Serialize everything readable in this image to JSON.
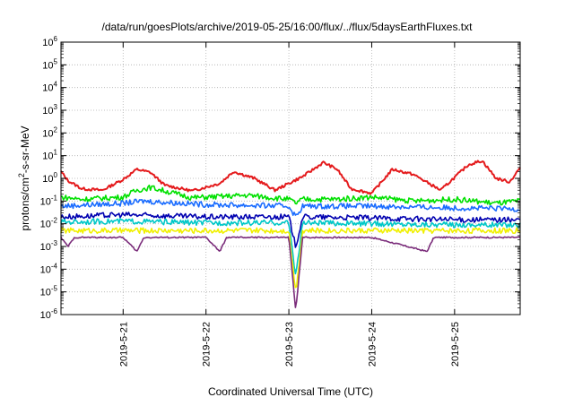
{
  "chart_data": {
    "type": "line",
    "title": "/data/run/goesPlots/archive/2019-05-25/16:00/flux/../flux/5daysEarthFluxes.txt",
    "xlabel": "Coordinated Universal Time (UTC)",
    "ylabel": {
      "prefix": "protons/cm",
      "sup": "2",
      "suffix": "-s-sr-MeV"
    },
    "x_range": [
      "2019-05-20 06:00",
      "2019-05-25 19:00"
    ],
    "x_ticks": [
      "2019-5-21",
      "2019-5-22",
      "2019-5-23",
      "2019-5-24",
      "2019-5-25"
    ],
    "y_scale": "log",
    "ylim": [
      1e-06,
      1000000.0
    ],
    "y_ticks": [
      {
        "base": "10",
        "exp": "-6"
      },
      {
        "base": "10",
        "exp": "-5"
      },
      {
        "base": "10",
        "exp": "-4"
      },
      {
        "base": "10",
        "exp": "-3"
      },
      {
        "base": "10",
        "exp": "-2"
      },
      {
        "base": "10",
        "exp": "-1"
      },
      {
        "base": "10",
        "exp": "0"
      },
      {
        "base": "10",
        "exp": "1"
      },
      {
        "base": "10",
        "exp": "2"
      },
      {
        "base": "10",
        "exp": "3"
      },
      {
        "base": "10",
        "exp": "4"
      },
      {
        "base": "10",
        "exp": "5"
      },
      {
        "base": "10",
        "exp": "6"
      }
    ],
    "grid": true,
    "series": [
      {
        "color": "#e41a1c",
        "points": [
          [
            "2019-05-20 06:00",
            2.0
          ],
          [
            "2019-05-20 08:00",
            0.8
          ],
          [
            "2019-05-20 12:00",
            0.35
          ],
          [
            "2019-05-20 18:00",
            0.3
          ],
          [
            "2019-05-21 00:00",
            0.9
          ],
          [
            "2019-05-21 04:00",
            2.5
          ],
          [
            "2019-05-21 08:00",
            1.8
          ],
          [
            "2019-05-21 12:00",
            0.5
          ],
          [
            "2019-05-21 20:00",
            0.28
          ],
          [
            "2019-05-22 04:00",
            0.6
          ],
          [
            "2019-05-22 08:00",
            2.0
          ],
          [
            "2019-05-22 14:00",
            1.0
          ],
          [
            "2019-05-22 20:00",
            0.3
          ],
          [
            "2019-05-23 04:00",
            1.2
          ],
          [
            "2019-05-23 10:00",
            5.0
          ],
          [
            "2019-05-23 14:00",
            2.5
          ],
          [
            "2019-05-23 18:00",
            0.35
          ],
          [
            "2019-05-24 00:00",
            0.22
          ],
          [
            "2019-05-24 06:00",
            2.5
          ],
          [
            "2019-05-24 12:00",
            1.5
          ],
          [
            "2019-05-24 20:00",
            0.3
          ],
          [
            "2019-05-25 04:00",
            4.0
          ],
          [
            "2019-05-25 08:00",
            6.0
          ],
          [
            "2019-05-25 12:00",
            1.0
          ],
          [
            "2019-05-25 16:00",
            0.7
          ],
          [
            "2019-05-25 19:00",
            3.0
          ]
        ]
      },
      {
        "color": "#00e000",
        "points": [
          [
            "2019-05-20 06:00",
            0.15
          ],
          [
            "2019-05-20 12:00",
            0.12
          ],
          [
            "2019-05-21 00:00",
            0.15
          ],
          [
            "2019-05-21 04:00",
            0.3
          ],
          [
            "2019-05-21 08:00",
            0.4
          ],
          [
            "2019-05-21 20:00",
            0.14
          ],
          [
            "2019-05-22 12:00",
            0.18
          ],
          [
            "2019-05-23 00:00",
            0.12
          ],
          [
            "2019-05-23 02:00",
            0.08
          ],
          [
            "2019-05-23 04:00",
            0.12
          ],
          [
            "2019-05-23 14:00",
            0.12
          ],
          [
            "2019-05-24 00:00",
            0.15
          ],
          [
            "2019-05-24 12:00",
            0.1
          ],
          [
            "2019-05-25 00:00",
            0.12
          ],
          [
            "2019-05-25 12:00",
            0.08
          ],
          [
            "2019-05-25 19:00",
            0.1
          ]
        ]
      },
      {
        "color": "#1a6cff",
        "points": [
          [
            "2019-05-20 06:00",
            0.06
          ],
          [
            "2019-05-21 00:00",
            0.08
          ],
          [
            "2019-05-21 06:00",
            0.1
          ],
          [
            "2019-05-22 00:00",
            0.07
          ],
          [
            "2019-05-23 00:00",
            0.06
          ],
          [
            "2019-05-23 02:00",
            0.02
          ],
          [
            "2019-05-23 04:00",
            0.06
          ],
          [
            "2019-05-24 00:00",
            0.06
          ],
          [
            "2019-05-25 00:00",
            0.05
          ],
          [
            "2019-05-25 19:00",
            0.045
          ]
        ]
      },
      {
        "color": "#0000b0",
        "points": [
          [
            "2019-05-20 06:00",
            0.02
          ],
          [
            "2019-05-21 00:00",
            0.025
          ],
          [
            "2019-05-22 00:00",
            0.02
          ],
          [
            "2019-05-23 00:00",
            0.02
          ],
          [
            "2019-05-23 02:00",
            0.001
          ],
          [
            "2019-05-23 04:00",
            0.02
          ],
          [
            "2019-05-24 00:00",
            0.018
          ],
          [
            "2019-05-25 00:00",
            0.015
          ],
          [
            "2019-05-25 19:00",
            0.015
          ]
        ]
      },
      {
        "color": "#00c8c8",
        "points": [
          [
            "2019-05-20 06:00",
            0.012
          ],
          [
            "2019-05-21 00:00",
            0.013
          ],
          [
            "2019-05-22 00:00",
            0.011
          ],
          [
            "2019-05-23 00:00",
            0.011
          ],
          [
            "2019-05-23 02:00",
            5e-05
          ],
          [
            "2019-05-23 04:00",
            0.011
          ],
          [
            "2019-05-24 00:00",
            0.01
          ],
          [
            "2019-05-25 00:00",
            0.009
          ],
          [
            "2019-05-25 19:00",
            0.009
          ]
        ]
      },
      {
        "color": "#f0f000",
        "points": [
          [
            "2019-05-20 06:00",
            0.005
          ],
          [
            "2019-05-21 00:00",
            0.005
          ],
          [
            "2019-05-22 00:00",
            0.005
          ],
          [
            "2019-05-23 00:00",
            0.005
          ],
          [
            "2019-05-23 02:00",
            1e-05
          ],
          [
            "2019-05-23 04:00",
            0.005
          ],
          [
            "2019-05-24 00:00",
            0.005
          ],
          [
            "2019-05-25 00:00",
            0.005
          ],
          [
            "2019-05-25 19:00",
            0.005
          ]
        ]
      },
      {
        "color": "#7b2d7b",
        "points": [
          [
            "2019-05-20 06:00",
            0.0025
          ],
          [
            "2019-05-20 08:00",
            0.001
          ],
          [
            "2019-05-20 10:00",
            0.0025
          ],
          [
            "2019-05-21 00:00",
            0.0025
          ],
          [
            "2019-05-21 04:00",
            0.0006
          ],
          [
            "2019-05-21 06:00",
            0.0025
          ],
          [
            "2019-05-22 00:00",
            0.0025
          ],
          [
            "2019-05-22 04:00",
            0.0006
          ],
          [
            "2019-05-22 06:00",
            0.0025
          ],
          [
            "2019-05-23 00:00",
            0.0025
          ],
          [
            "2019-05-23 02:00",
            1.5e-06
          ],
          [
            "2019-05-23 04:00",
            0.0025
          ],
          [
            "2019-05-24 00:00",
            0.0025
          ],
          [
            "2019-05-24 16:00",
            0.0006
          ],
          [
            "2019-05-24 18:00",
            0.0025
          ],
          [
            "2019-05-25 00:00",
            0.0025
          ],
          [
            "2019-05-25 19:00",
            0.0025
          ]
        ]
      }
    ]
  }
}
